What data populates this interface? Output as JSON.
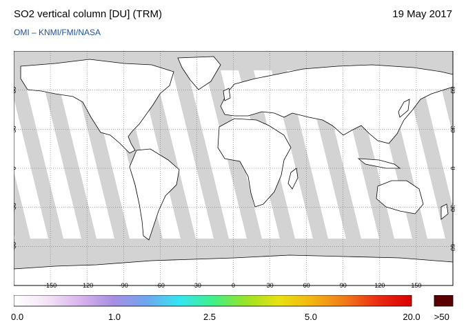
{
  "header": {
    "title": "SO2 vertical column [DU] (TRM)",
    "date": "19 May 2017",
    "subtitle": "OMI  –  KNMI/FMI/NASA"
  },
  "map": {
    "projection": "equirectangular",
    "lon_range": [
      -180,
      180
    ],
    "lat_range": [
      -90,
      90
    ],
    "lon_ticks": [
      -150,
      -120,
      -90,
      -60,
      -30,
      0,
      30,
      60,
      90,
      120,
      150
    ],
    "lon_tick_labels": [
      "-150",
      "-120",
      "-90",
      "-60",
      "-30",
      "0",
      "30",
      "60",
      "90",
      "120",
      "150"
    ],
    "lat_ticks": [
      60,
      30,
      0,
      -30,
      -60
    ],
    "lat_tick_labels": [
      "60",
      "30",
      "0",
      "-30",
      "-60"
    ],
    "grid": "dotted",
    "colors": {
      "no_data": "#d3d3d3",
      "land_no_data": "#a9a9a9",
      "coast": "#000000"
    }
  },
  "colorbar": {
    "labels": [
      "0.0",
      "1.0",
      "2.5",
      "5.0",
      "20.0",
      ">50"
    ],
    "colors": [
      "#ffffff",
      "#f4e4f6",
      "#d9b4ec",
      "#a78ee2",
      "#6fa6f0",
      "#34e6f0",
      "#3ff08a",
      "#9ae326",
      "#e8e20e",
      "#f3b413",
      "#f07a18",
      "#ea2a10",
      "#da0000"
    ],
    "overflow_color": "#5a0000"
  }
}
